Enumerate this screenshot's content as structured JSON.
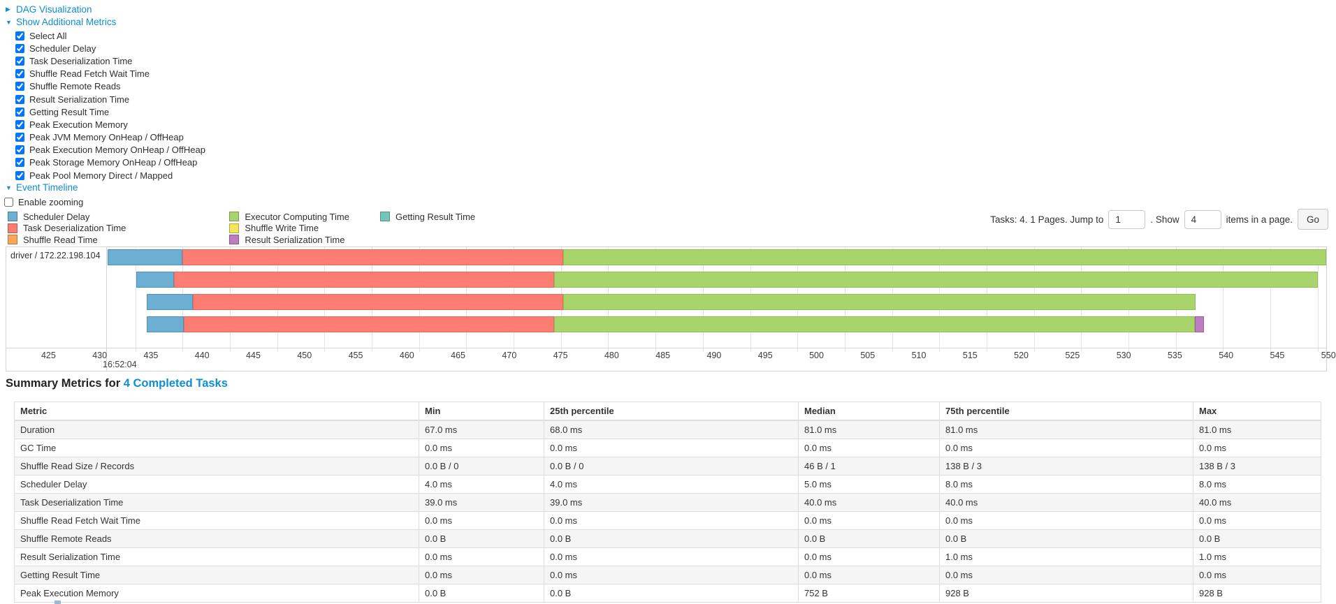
{
  "sidebar_links": {
    "dag": "DAG Visualization",
    "metrics": "Show Additional Metrics",
    "timeline": "Event Timeline"
  },
  "metrics_checkboxes": [
    "Select All",
    "Scheduler Delay",
    "Task Deserialization Time",
    "Shuffle Read Fetch Wait Time",
    "Shuffle Remote Reads",
    "Result Serialization Time",
    "Getting Result Time",
    "Peak Execution Memory",
    "Peak JVM Memory OnHeap / OffHeap",
    "Peak Execution Memory OnHeap / OffHeap",
    "Peak Storage Memory OnHeap / OffHeap",
    "Peak Pool Memory Direct / Mapped"
  ],
  "enable_zooming_label": "Enable zooming",
  "legend": {
    "columns": [
      [
        {
          "label": "Scheduler Delay",
          "color": "#6DAFD2"
        },
        {
          "label": "Task Deserialization Time",
          "color": "#FD7D72"
        },
        {
          "label": "Shuffle Read Time",
          "color": "#F9A65A"
        }
      ],
      [
        {
          "label": "Executor Computing Time",
          "color": "#A9D46C"
        },
        {
          "label": "Shuffle Write Time",
          "color": "#F3E55C"
        },
        {
          "label": "Result Serialization Time",
          "color": "#BC7EBE"
        }
      ],
      [
        {
          "label": "Getting Result Time",
          "color": "#74C7B7"
        }
      ]
    ]
  },
  "pagination": {
    "summary": "Tasks: 4. 1 Pages. Jump to",
    "jump_value": "1",
    "show_label": ". Show",
    "show_value": "4",
    "items_label": "items in a page.",
    "go_label": "Go"
  },
  "chart_data": {
    "type": "timeline-gantt",
    "row_label": "driver / 172.22.198.104",
    "axis": {
      "min": 422.0,
      "max": 550.9,
      "tick_start": 425,
      "tick_end": 550,
      "tick_step": 5,
      "base_time_label": "16:52:04",
      "unit": "ms within second 16:52:04"
    },
    "colors": {
      "scheduler-delay": {
        "fill": "#6DAFD2",
        "border": "#4F93BA"
      },
      "task-deserialization": {
        "fill": "#FD7D72",
        "border": "#E9675C"
      },
      "executor-computing": {
        "fill": "#A9D46C",
        "border": "#90BF52"
      },
      "result-serialization": {
        "fill": "#BC7EBE",
        "border": "#9E5CA6"
      }
    },
    "tasks": [
      {
        "segments": [
          {
            "type": "scheduler-delay",
            "start": 422.1,
            "end": 430.0
          },
          {
            "type": "task-deserialization",
            "start": 430.0,
            "end": 470.2
          },
          {
            "type": "executor-computing",
            "start": 470.2,
            "end": 550.9
          }
        ]
      },
      {
        "segments": [
          {
            "type": "scheduler-delay",
            "start": 425.1,
            "end": 429.1
          },
          {
            "type": "task-deserialization",
            "start": 429.1,
            "end": 469.3
          },
          {
            "type": "executor-computing",
            "start": 469.3,
            "end": 550.0
          }
        ]
      },
      {
        "segments": [
          {
            "type": "scheduler-delay",
            "start": 426.2,
            "end": 431.1
          },
          {
            "type": "task-deserialization",
            "start": 431.1,
            "end": 470.2
          },
          {
            "type": "executor-computing",
            "start": 470.2,
            "end": 537.1
          }
        ]
      },
      {
        "segments": [
          {
            "type": "scheduler-delay",
            "start": 426.2,
            "end": 430.1
          },
          {
            "type": "task-deserialization",
            "start": 430.1,
            "end": 469.3
          },
          {
            "type": "executor-computing",
            "start": 469.3,
            "end": 537.0
          },
          {
            "type": "result-serialization",
            "start": 537.0,
            "end": 538.0
          }
        ]
      }
    ]
  },
  "summary_table": {
    "title_prefix": "Summary Metrics for ",
    "title_link": "4 Completed Tasks",
    "columns": [
      "Metric",
      "Min",
      "25th percentile",
      "Median",
      "75th percentile",
      "Max"
    ],
    "rows": [
      {
        "metric": "Duration",
        "values": [
          "67.0 ms",
          "68.0 ms",
          "81.0 ms",
          "81.0 ms",
          "81.0 ms"
        ]
      },
      {
        "metric": "GC Time",
        "values": [
          "0.0 ms",
          "0.0 ms",
          "0.0 ms",
          "0.0 ms",
          "0.0 ms"
        ]
      },
      {
        "metric": "Shuffle Read Size / Records",
        "values": [
          "0.0 B / 0",
          "0.0 B / 0",
          "46 B / 1",
          "138 B / 3",
          "138 B / 3"
        ]
      },
      {
        "metric": "Scheduler Delay",
        "values": [
          "4.0 ms",
          "4.0 ms",
          "5.0 ms",
          "8.0 ms",
          "8.0 ms"
        ]
      },
      {
        "metric": "Task Deserialization Time",
        "values": [
          "39.0 ms",
          "39.0 ms",
          "40.0 ms",
          "40.0 ms",
          "40.0 ms"
        ]
      },
      {
        "metric": "Shuffle Read Fetch Wait Time",
        "values": [
          "0.0 ms",
          "0.0 ms",
          "0.0 ms",
          "0.0 ms",
          "0.0 ms"
        ]
      },
      {
        "metric": "Shuffle Remote Reads",
        "values": [
          "0.0 B",
          "0.0 B",
          "0.0 B",
          "0.0 B",
          "0.0 B"
        ]
      },
      {
        "metric": "Result Serialization Time",
        "values": [
          "0.0 ms",
          "0.0 ms",
          "0.0 ms",
          "1.0 ms",
          "1.0 ms"
        ]
      },
      {
        "metric": "Getting Result Time",
        "values": [
          "0.0 ms",
          "0.0 ms",
          "0.0 ms",
          "0.0 ms",
          "0.0 ms"
        ]
      },
      {
        "metric": "Peak Execution Memory",
        "values": [
          "0.0 B",
          "0.0 B",
          "752 B",
          "928 B",
          "928 B"
        ]
      }
    ]
  },
  "colors": {
    "link": "#0d8fd1"
  }
}
